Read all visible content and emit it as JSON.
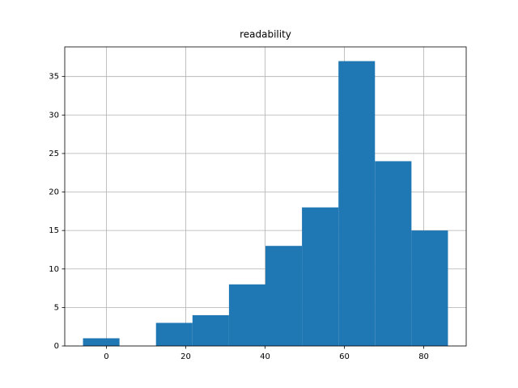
{
  "chart_data": {
    "type": "histogram",
    "title": "readability",
    "bins": [
      -5.9,
      3.3,
      12.5,
      21.7,
      30.9,
      40.1,
      49.3,
      58.5,
      67.7,
      76.9,
      86.1
    ],
    "values": [
      1,
      0,
      3,
      4,
      8,
      13,
      18,
      37,
      24,
      15
    ],
    "color": "#1f77b4",
    "xlim": [
      -10.5,
      90.7
    ],
    "xticks": [
      0,
      20,
      40,
      60,
      80
    ],
    "ylim": [
      0,
      38.85
    ],
    "yticks": [
      0,
      5,
      10,
      15,
      20,
      25,
      30,
      35
    ],
    "grid": true
  }
}
